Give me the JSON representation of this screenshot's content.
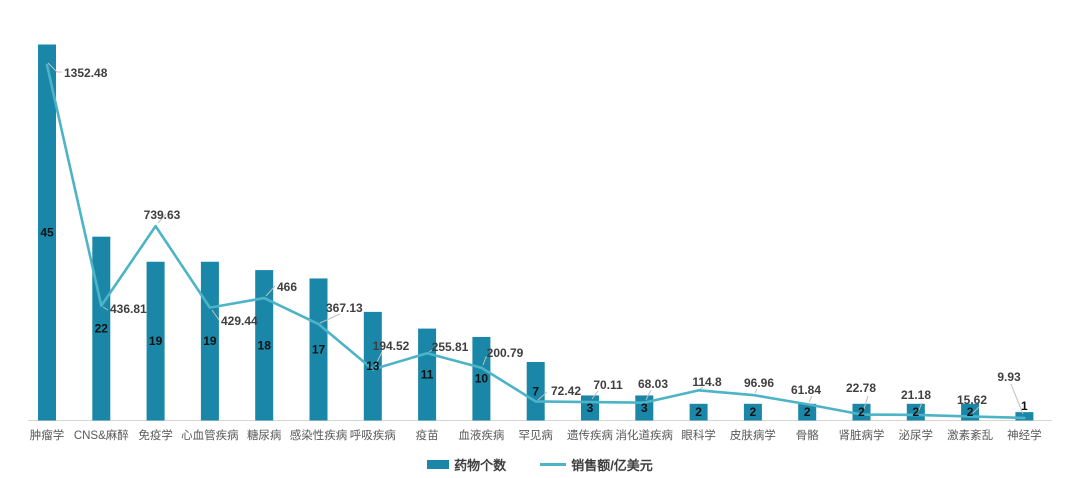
{
  "chart_data": {
    "type": "bar+line",
    "title": "",
    "categories": [
      "肿瘤学",
      "CNS&麻醉",
      "免疫学",
      "心血管疾病",
      "糖尿病",
      "感染性疾病",
      "呼吸疾病",
      "疫苗",
      "血液疾病",
      "罕见病",
      "遗传疾病",
      "消化道疾病",
      "眼科学",
      "皮肤病学",
      "骨骼",
      "肾脏病学",
      "泌尿学",
      "激素紊乱",
      "神经学"
    ],
    "series": [
      {
        "name": "药物个数",
        "type": "bar",
        "color": "#1a87a8",
        "values": [
          45,
          22,
          19,
          19,
          18,
          17,
          13,
          11,
          10,
          7,
          3,
          3,
          2,
          2,
          2,
          2,
          2,
          2,
          1
        ]
      },
      {
        "name": "销售额/亿美元",
        "type": "line",
        "color": "#4db3c7",
        "values": [
          1352.48,
          436.81,
          739.63,
          429.44,
          466,
          367.13,
          194.52,
          255.81,
          200.79,
          72.42,
          70.11,
          68.03,
          114.8,
          96.96,
          61.84,
          22.78,
          21.18,
          15.62,
          9.93
        ]
      }
    ],
    "legend_position": "bottom",
    "grid": false,
    "y_axis_visible": false,
    "bar_axis_range": [
      0,
      50
    ],
    "line_axis_range": [
      0,
      1600
    ],
    "colors": {
      "background": "#ffffff",
      "axis_line": "#d6d6d6",
      "leader_line": "#bfbfbf",
      "bar_value_label": "#111111",
      "line_value_label": "#3f3f3f",
      "category_label": "#595959"
    }
  }
}
